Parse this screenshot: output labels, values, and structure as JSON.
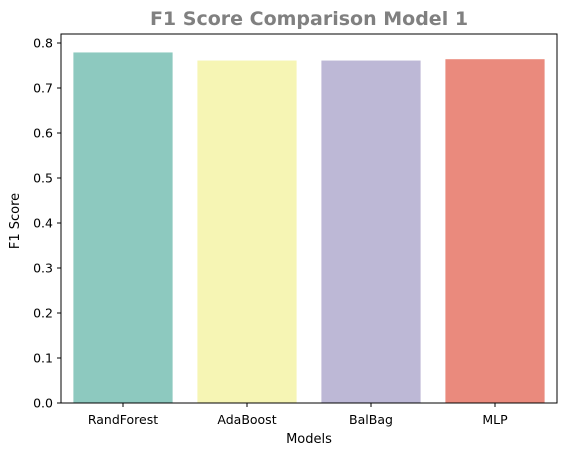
{
  "chart_data": {
    "type": "bar",
    "title": "F1 Score Comparison Model 1",
    "xlabel": "Models",
    "ylabel": "F1 Score",
    "categories": [
      "RandForest",
      "AdaBoost",
      "BalBag",
      "MLP"
    ],
    "values": [
      0.779,
      0.761,
      0.761,
      0.764
    ],
    "colors": [
      "#8dc9bf",
      "#f6f5b4",
      "#bdb8d6",
      "#ea8a7d"
    ],
    "ylim": [
      0,
      0.82
    ],
    "yticks": [
      "0.0",
      "0.1",
      "0.2",
      "0.3",
      "0.4",
      "0.5",
      "0.6",
      "0.7",
      "0.8"
    ],
    "grid": false,
    "legend": "none"
  }
}
